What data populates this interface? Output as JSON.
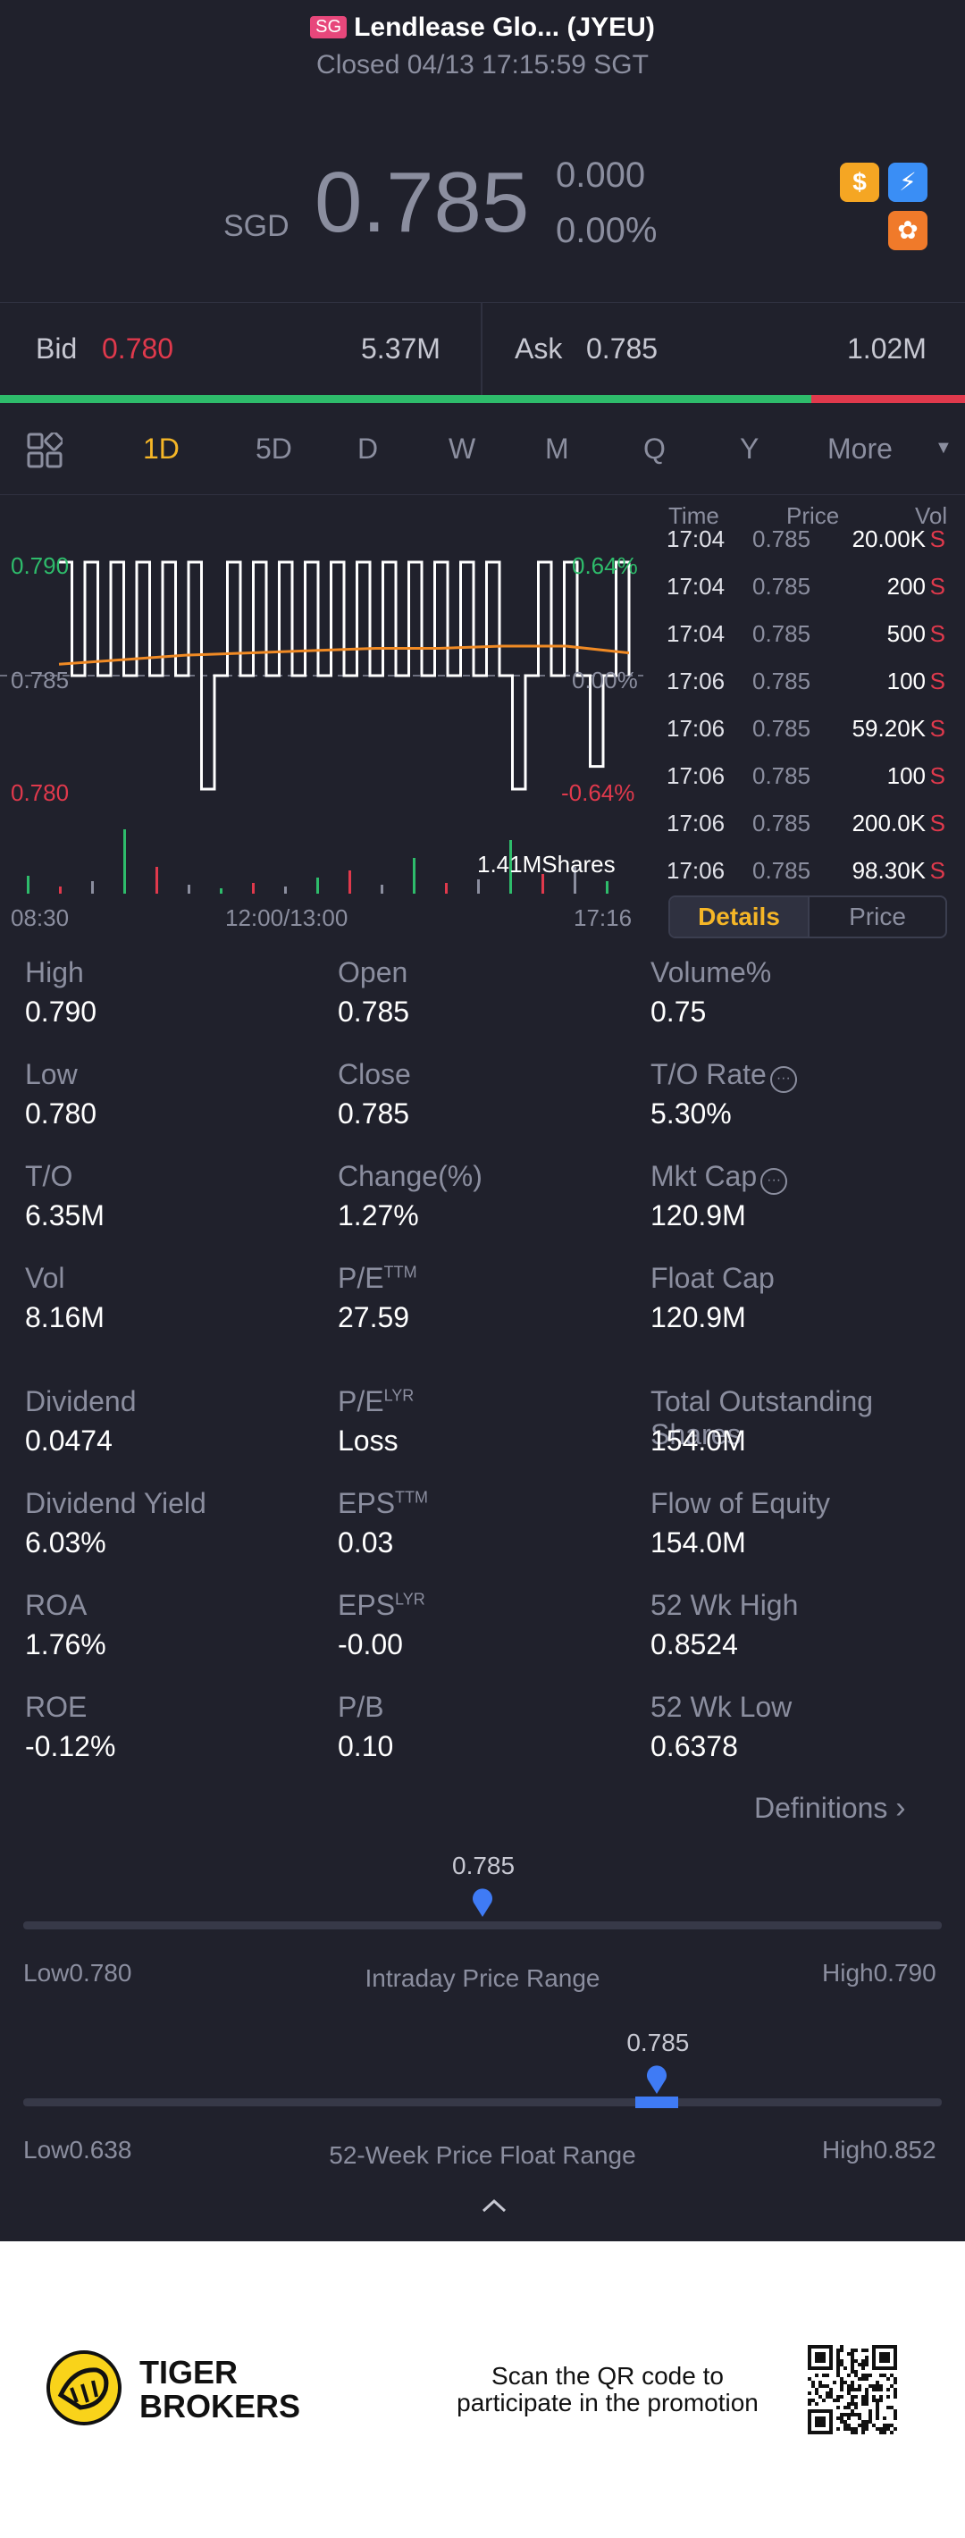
{
  "header": {
    "market_badge": "SG",
    "title": "Lendlease Glo... (JYEU)",
    "status": "Closed 04/13 17:15:59 SGT"
  },
  "quote": {
    "currency": "SGD",
    "price": "0.785",
    "change": "0.000",
    "change_pct": "0.00%",
    "progress_fraction_bid": 0.84
  },
  "bid": {
    "label": "Bid",
    "price": "0.780",
    "size": "5.37M"
  },
  "ask": {
    "label": "Ask",
    "price": "0.785",
    "size": "1.02M"
  },
  "tabs": [
    "1D",
    "5D",
    "D",
    "W",
    "M",
    "Q",
    "Y",
    "More"
  ],
  "active_tab": "1D",
  "chart_data": {
    "type": "line",
    "y_labels": {
      "high": "0.790",
      "mid": "0.785",
      "low": "0.780"
    },
    "pct_labels": {
      "high": "0.64%",
      "mid": "0.00%",
      "low": "-0.64%"
    },
    "x_labels": [
      "08:30",
      "12:00/13:00",
      "17:16"
    ],
    "ylim": [
      0.78,
      0.79
    ],
    "volume_label": "1.41MShares",
    "avg_line": [
      0.7855,
      0.7857,
      0.7859,
      0.786,
      0.7861,
      0.7862,
      0.7862,
      0.7863,
      0.7863,
      0.786
    ],
    "price_series": [
      0.79,
      0.785,
      0.79,
      0.785,
      0.79,
      0.785,
      0.79,
      0.785,
      0.79,
      0.785,
      0.79,
      0.78,
      0.785,
      0.79,
      0.785,
      0.79,
      0.785,
      0.79,
      0.785,
      0.79,
      0.785,
      0.79,
      0.785,
      0.79,
      0.785,
      0.79,
      0.785,
      0.79,
      0.785,
      0.79,
      0.785,
      0.79,
      0.785,
      0.79,
      0.785,
      0.78,
      0.785,
      0.79,
      0.785,
      0.79,
      0.785,
      0.781,
      0.785,
      0.79,
      0.785
    ]
  },
  "trades": {
    "headers": [
      "Time",
      "Price",
      "Vol"
    ],
    "rows": [
      {
        "time": "17:04",
        "price": "0.785",
        "vol": "20.00K",
        "side": "S"
      },
      {
        "time": "17:04",
        "price": "0.785",
        "vol": "200",
        "side": "S"
      },
      {
        "time": "17:04",
        "price": "0.785",
        "vol": "500",
        "side": "S"
      },
      {
        "time": "17:06",
        "price": "0.785",
        "vol": "100",
        "side": "S"
      },
      {
        "time": "17:06",
        "price": "0.785",
        "vol": "59.20K",
        "side": "S"
      },
      {
        "time": "17:06",
        "price": "0.785",
        "vol": "100",
        "side": "S"
      },
      {
        "time": "17:06",
        "price": "0.785",
        "vol": "200.0K",
        "side": "S"
      },
      {
        "time": "17:06",
        "price": "0.785",
        "vol": "98.30K",
        "side": "S"
      }
    ],
    "toggle": {
      "details": "Details",
      "price": "Price"
    }
  },
  "stats": [
    {
      "label": "High",
      "value": "0.790"
    },
    {
      "label": "Open",
      "value": "0.785"
    },
    {
      "label": "Volume%",
      "value": "0.75"
    },
    {
      "label": "Low",
      "value": "0.780"
    },
    {
      "label": "Close",
      "value": "0.785"
    },
    {
      "label": "T/O Rate",
      "value": "5.30%"
    },
    {
      "label": "T/O",
      "value": "6.35M"
    },
    {
      "label": "Change(%)",
      "value": "1.27%"
    },
    {
      "label": "Mkt Cap",
      "value": "120.9M"
    },
    {
      "label": "Vol",
      "value": "8.16M"
    },
    {
      "label": "P/E",
      "sup": "TTM",
      "value": "27.59"
    },
    {
      "label": "Float Cap",
      "value": "120.9M"
    },
    {
      "label": "Dividend",
      "value": "0.0474"
    },
    {
      "label": "P/E",
      "sup": "LYR",
      "value": "Loss"
    },
    {
      "label": "Total Outstanding Shares",
      "value": "154.0M"
    },
    {
      "label": "Dividend Yield",
      "value": "6.03%"
    },
    {
      "label": "EPS",
      "sup": "TTM",
      "value": "0.03"
    },
    {
      "label": "Flow of Equity",
      "value": "154.0M"
    },
    {
      "label": "ROA",
      "value": "1.76%"
    },
    {
      "label": "EPS",
      "sup": "LYR",
      "value": "-0.00"
    },
    {
      "label": "52 Wk High",
      "value": "0.8524"
    },
    {
      "label": "ROE",
      "value": "-0.12%"
    },
    {
      "label": "P/B",
      "value": "0.10"
    },
    {
      "label": "52 Wk Low",
      "value": "0.6378"
    }
  ],
  "definitions_label": "Definitions",
  "intraday_range": {
    "title": "Intraday Price Range",
    "current": "0.785",
    "low_label": "Low",
    "low": "0.780",
    "high_label": "High",
    "high": "0.790",
    "position_fraction": 0.5
  },
  "week52_range": {
    "title": "52-Week Price Float Range",
    "current": "0.785",
    "low_label": "Low",
    "low": "0.638",
    "high_label": "High",
    "high": "0.852",
    "position_fraction": 0.69
  },
  "footer": {
    "brand_line1": "TIGER",
    "brand_line2": "BROKERS",
    "scan_line1": "Scan the QR code to",
    "scan_line2": "participate in the promotion"
  },
  "colors": {
    "green": "#2ebc6b",
    "red": "#e0394c",
    "orange": "#f5b627",
    "blue": "#3f7bf5"
  }
}
